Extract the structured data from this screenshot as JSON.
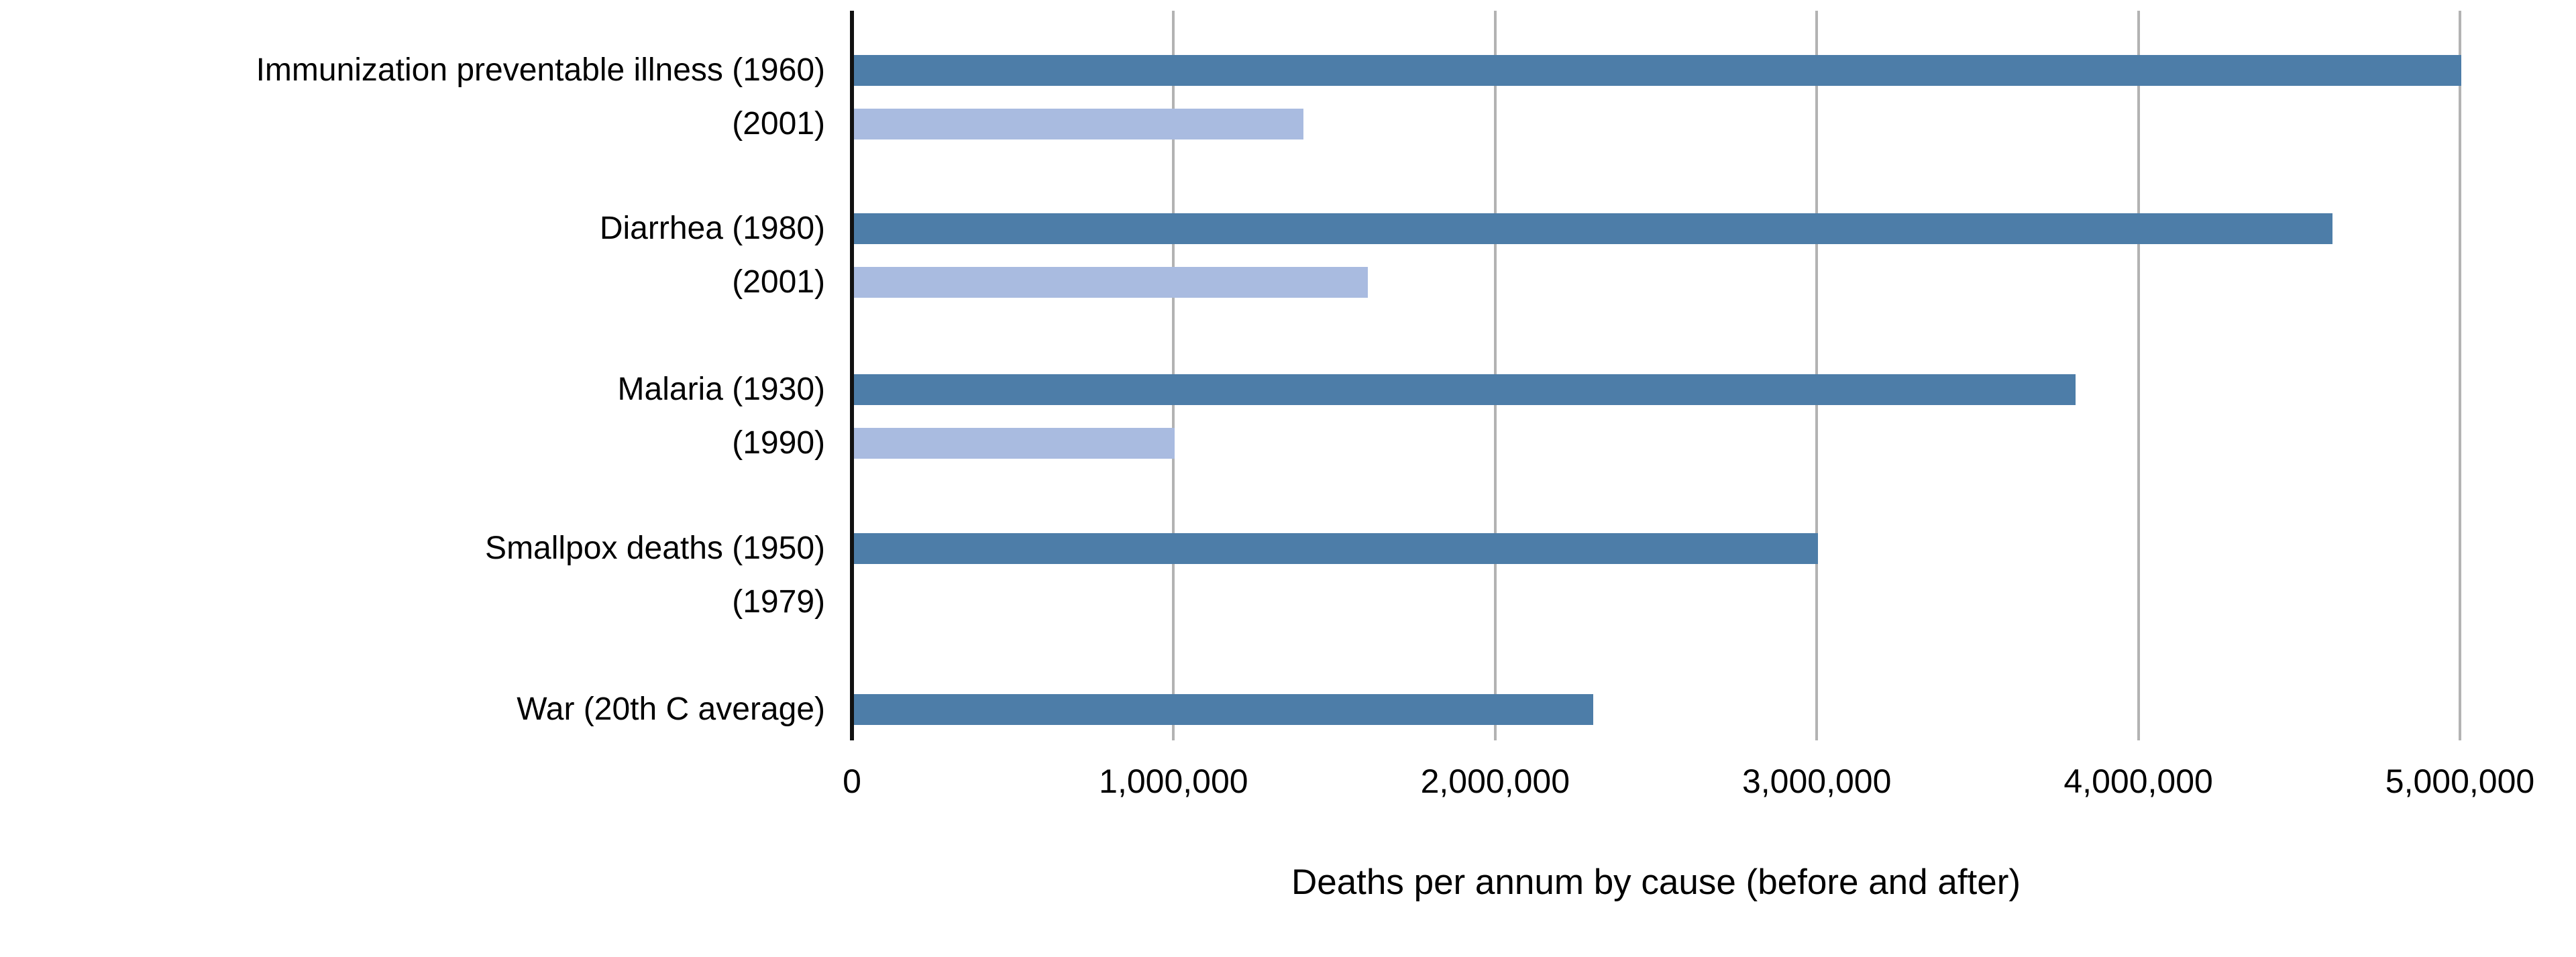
{
  "chart_data": {
    "type": "bar",
    "orientation": "horizontal",
    "title": "",
    "xlabel": "Deaths per annum by cause (before and after)",
    "ylabel": "",
    "xlim": [
      0,
      5000000
    ],
    "x_ticks": [
      0,
      1000000,
      2000000,
      3000000,
      4000000,
      5000000
    ],
    "x_tick_labels": [
      "0",
      "1,000,000",
      "2,000,000",
      "3,000,000",
      "4,000,000",
      "5,000,000"
    ],
    "grid": true,
    "legend": false,
    "colors": {
      "before_bar": "#4d7da8",
      "after_bar": "#a9bbe0",
      "gridline": "#b3b3b3",
      "axis_line": "#111111",
      "text": "#000000",
      "background": "#ffffff"
    },
    "groups": [
      {
        "label_before": "Immunization preventable illness (1960)",
        "value_before": 5000000,
        "label_after": "(2001)",
        "value_after": 1400000
      },
      {
        "label_before": "Diarrhea (1980)",
        "value_before": 4600000,
        "label_after": "(2001)",
        "value_after": 1600000
      },
      {
        "label_before": "Malaria (1930)",
        "value_before": 3800000,
        "label_after": "(1990)",
        "value_after": 1000000
      },
      {
        "label_before": "Smallpox deaths (1950)",
        "value_before": 3000000,
        "label_after": "(1979)",
        "value_after": 0
      },
      {
        "label_before": "War (20th C average)",
        "value_before": 2300000,
        "label_after": null,
        "value_after": null
      }
    ]
  }
}
